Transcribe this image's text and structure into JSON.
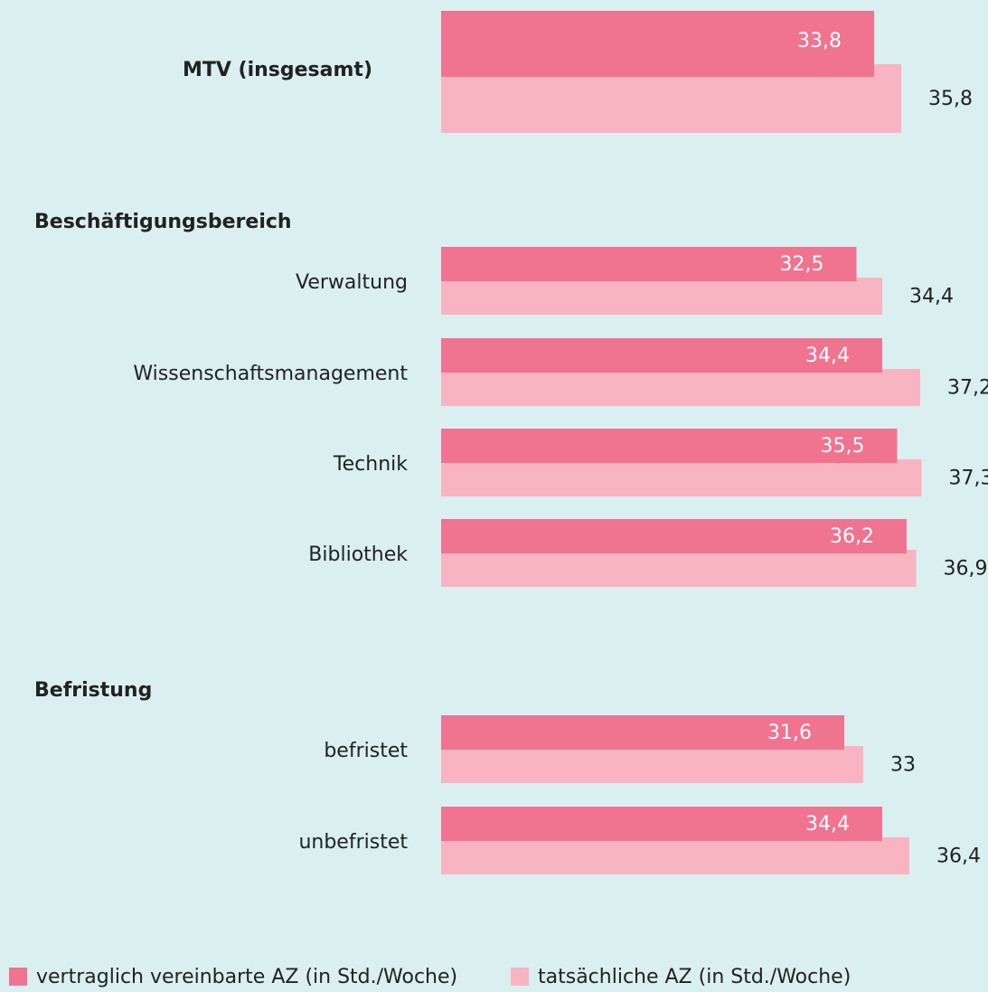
{
  "chart_data": {
    "type": "bar",
    "orientation": "horizontal",
    "categories": [
      "MTV (insgesamt)",
      "Verwaltung",
      "Wissenschaftsmanagement",
      "Technik",
      "Bibliothek",
      "befristet",
      "unbefristet"
    ],
    "annotations": [
      "Beschäftigungsbereich",
      "Befristung"
    ],
    "series": [
      {
        "name": "vertraglich vereinbarte AZ (in Std./Woche)",
        "color": "#f07390",
        "values": [
          33.8,
          32.5,
          34.4,
          35.5,
          36.2,
          31.6,
          34.4
        ],
        "value_labels": [
          "33,8",
          "32,5",
          "34,4",
          "35,5",
          "36,2",
          "31,6",
          "34,4"
        ]
      },
      {
        "name": "tatsächliche AZ (in Std./Woche)",
        "color": "#f8b4c0",
        "values": [
          35.8,
          34.4,
          37.2,
          37.3,
          36.9,
          33,
          36.4
        ],
        "value_labels": [
          "35,8",
          "34,4",
          "37,2",
          "37,3",
          "36,9",
          "33",
          "36,4"
        ]
      }
    ]
  }
}
